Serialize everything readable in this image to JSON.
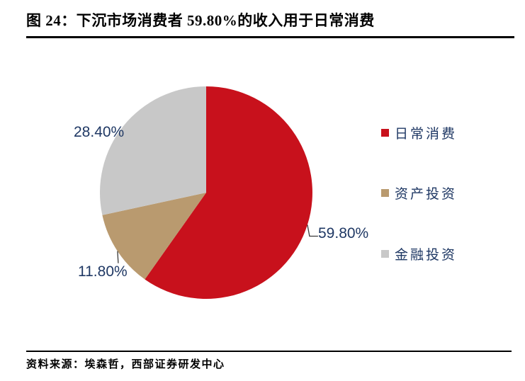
{
  "page": {
    "title": "图 24：下沉市场消费者 59.80%的收入用于日常消费",
    "source": "资料来源：埃森哲，西部证券研发中心"
  },
  "colors": {
    "slice_daily": "#C8111C",
    "slice_asset": "#B99A6F",
    "slice_finance": "#C8C8C8",
    "value_label_text": "#1F3864",
    "legend_text": "#1F3864",
    "rule": "#000000",
    "leader_line": "#3A3A3A",
    "background": "#FFFFFF"
  },
  "chart_data": {
    "type": "pie",
    "title": "图 24：下沉市场消费者 59.80%的收入用于日常消费",
    "start_angle_deg": 0,
    "direction": "clockwise",
    "legend_position": "right",
    "slices": [
      {
        "label": "日常消费",
        "value": 59.8,
        "display": "59.80%",
        "color": "#C8111C"
      },
      {
        "label": "资产投资",
        "value": 11.8,
        "display": "11.80%",
        "color": "#B99A6F"
      },
      {
        "label": "金融投资",
        "value": 28.4,
        "display": "28.40%",
        "color": "#C8C8C8"
      }
    ],
    "source": "资料来源：埃森哲，西部证券研发中心"
  }
}
